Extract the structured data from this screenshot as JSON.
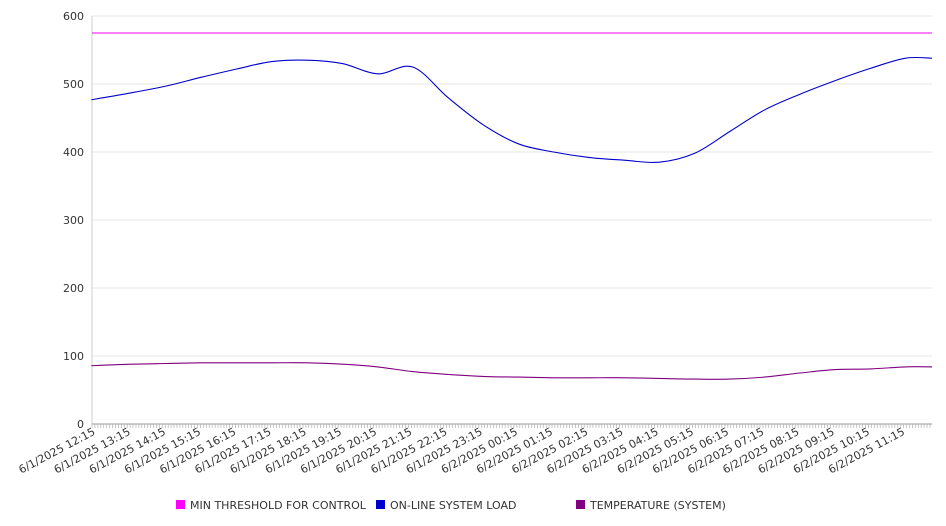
{
  "chart_data": {
    "type": "line",
    "title": "",
    "xlabel": "",
    "ylabel": "",
    "ylim": [
      0,
      600
    ],
    "y_ticks": [
      0,
      100,
      200,
      300,
      400,
      500,
      600
    ],
    "grid": true,
    "legend_position": "bottom",
    "x": [
      "6/1/2025 12:15",
      "6/1/2025 13:15",
      "6/1/2025 14:15",
      "6/1/2025 15:15",
      "6/1/2025 16:15",
      "6/1/2025 17:15",
      "6/1/2025 18:15",
      "6/1/2025 19:15",
      "6/1/2025 20:15",
      "6/1/2025 21:15",
      "6/1/2025 22:15",
      "6/1/2025 23:15",
      "6/2/2025 00:15",
      "6/2/2025 01:15",
      "6/2/2025 02:15",
      "6/2/2025 03:15",
      "6/2/2025 04:15",
      "6/2/2025 05:15",
      "6/2/2025 06:15",
      "6/2/2025 07:15",
      "6/2/2025 08:15",
      "6/2/2025 09:15",
      "6/2/2025 10:15",
      "6/2/2025 11:15"
    ],
    "series": [
      {
        "name": "MIN THRESHOLD FOR CONTROL",
        "color": "#ff00ff",
        "values": [
          575,
          575,
          575,
          575,
          575,
          575,
          575,
          575,
          575,
          575,
          575,
          575,
          575,
          575,
          575,
          575,
          575,
          575,
          575,
          575,
          575,
          575,
          575,
          575
        ]
      },
      {
        "name": "ON-LINE SYSTEM LOAD",
        "color": "#0000cc",
        "values": [
          478,
          487,
          497,
          510,
          522,
          533,
          535,
          530,
          515,
          525,
          480,
          440,
          412,
          400,
          392,
          388,
          385,
          398,
          430,
          462,
          485,
          505,
          523,
          538
        ]
      },
      {
        "name": "TEMPERATURE (SYSTEM)",
        "color": "#800080",
        "values": [
          86,
          88,
          89,
          90,
          90,
          90,
          90,
          88,
          84,
          77,
          73,
          70,
          69,
          68,
          68,
          68,
          67,
          66,
          66,
          69,
          75,
          80,
          81,
          84
        ]
      }
    ]
  }
}
